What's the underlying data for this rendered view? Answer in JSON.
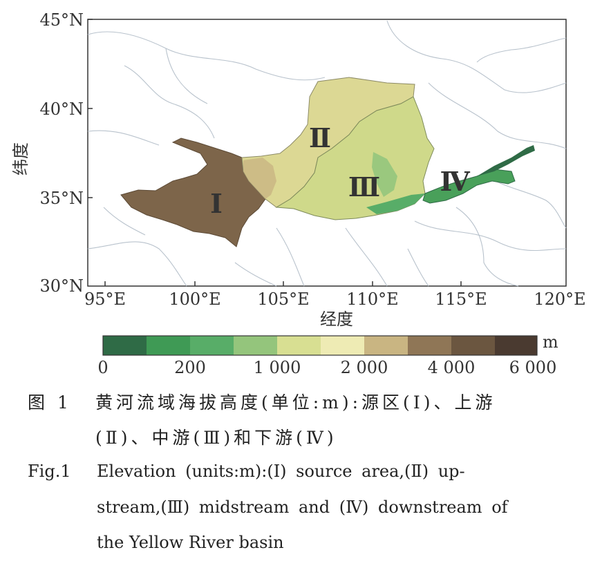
{
  "map": {
    "ylabel": "纬度",
    "xlabel": "经度",
    "lat_ticks": [
      "45°N",
      "40°N",
      "35°N",
      "30°N"
    ],
    "lon_ticks": [
      "95°E",
      "100°E",
      "105°E",
      "110°E",
      "115°E",
      "120°E"
    ],
    "regions": [
      {
        "label": "Ⅰ",
        "name": "source area",
        "color": "#7d654a"
      },
      {
        "label": "Ⅱ",
        "name": "upstream",
        "color": "#dcd894"
      },
      {
        "label": "Ⅲ",
        "name": "midstream",
        "color": "#cfd98a"
      },
      {
        "label": "Ⅳ",
        "name": "downstream",
        "color": "#49a05a"
      }
    ]
  },
  "legend": {
    "unit": "m",
    "tick_labels": [
      "0",
      "200",
      "1 000",
      "2 000",
      "4 000",
      "6 000"
    ],
    "colors": [
      "#2f6b46",
      "#3f9a55",
      "#58ad68",
      "#94c57c",
      "#d8df92",
      "#eeebb4",
      "#c9b582",
      "#8f7656",
      "#6b5640",
      "#4a3a30"
    ]
  },
  "caption": {
    "cn_label": "图 1",
    "cn_line1": "黄河流域海拔高度(单位:m):源区(Ⅰ)、上游",
    "cn_line2": "(Ⅱ)、中游(Ⅲ)和下游(Ⅳ)",
    "en_label": "Fig.1",
    "en_line1": "Elevation (units:m):(Ⅰ) source area,(Ⅱ) up-",
    "en_line2": "stream,(Ⅲ) midstream and (Ⅳ) downstream of",
    "en_line3": "the Yellow River basin"
  }
}
